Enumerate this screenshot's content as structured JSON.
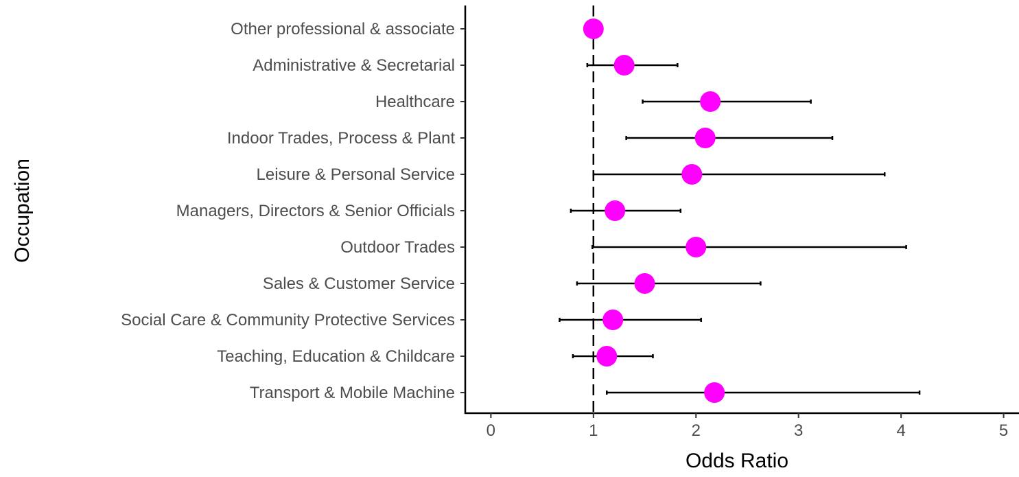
{
  "chart_data": {
    "type": "forest",
    "xlabel": "Odds Ratio",
    "ylabel": "Occupation",
    "xlim": [
      -0.25,
      5.15
    ],
    "x_ticks": [
      0,
      1,
      2,
      3,
      4,
      5
    ],
    "x_tick_labels": [
      "0",
      "1",
      "2",
      "3",
      "4",
      "5"
    ],
    "reference_line": 1,
    "point_color": "#FF00FF",
    "line_color": "#000000",
    "grid": false,
    "categories": [
      "Other professional & associate",
      "Administrative & Secretarial",
      "Healthcare",
      "Indoor Trades, Process & Plant",
      "Leisure & Personal Service",
      "Managers, Directors & Senior Officials",
      "Outdoor Trades",
      "Sales & Customer Service",
      "Social Care & Community Protective Services",
      "Teaching, Education & Childcare",
      "Transport & Mobile Machine"
    ],
    "odds_ratio": [
      1.0,
      1.3,
      2.14,
      2.09,
      1.96,
      1.21,
      2.0,
      1.5,
      1.19,
      1.13,
      2.18
    ],
    "ci_lower": [
      null,
      0.94,
      1.48,
      1.32,
      1.0,
      0.78,
      0.99,
      0.84,
      0.67,
      0.8,
      1.13
    ],
    "ci_upper": [
      null,
      1.82,
      3.12,
      3.33,
      3.84,
      1.85,
      4.05,
      2.63,
      2.05,
      1.58,
      4.18
    ]
  }
}
